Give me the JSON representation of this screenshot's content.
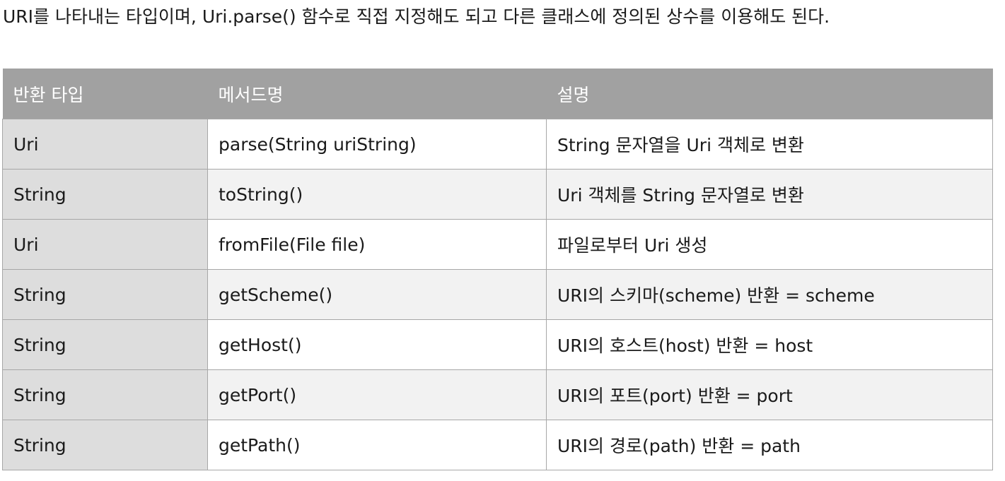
{
  "intro_text": "URI를 나타내는 타입이며, Uri.parse() 함수로 직접 지정해도 되고 다른 클래스에 정의된 상수를 이용해도 된다.",
  "table": {
    "headers": [
      "반환 타입",
      "메서드명",
      "설명"
    ],
    "rows": [
      {
        "type": "Uri",
        "method": "parse(String uriString)",
        "desc": "String 문자열을 Uri 객체로 변환"
      },
      {
        "type": "String",
        "method": "toString()",
        "desc": "Uri 객체를 String 문자열로 변환"
      },
      {
        "type": "Uri",
        "method": "fromFile(File file)",
        "desc": "파일로부터 Uri 생성"
      },
      {
        "type": "String",
        "method": "getScheme()",
        "desc": "URI의 스키마(scheme) 반환 = scheme"
      },
      {
        "type": "String",
        "method": "getHost()",
        "desc": "URI의 호스트(host) 반환 = host"
      },
      {
        "type": "String",
        "method": "getPort()",
        "desc": "URI의 포트(port) 반환 = port"
      },
      {
        "type": "String",
        "method": "getPath()",
        "desc": "URI의 경로(path) 반환 = path"
      }
    ]
  },
  "colors": {
    "header_bg": "#a1a1a1",
    "header_text": "#ffffff",
    "type_column_bg": "#dddddd",
    "odd_row_bg": "#ffffff",
    "even_row_bg": "#f2f2f2",
    "border": "#a7a7a7"
  }
}
